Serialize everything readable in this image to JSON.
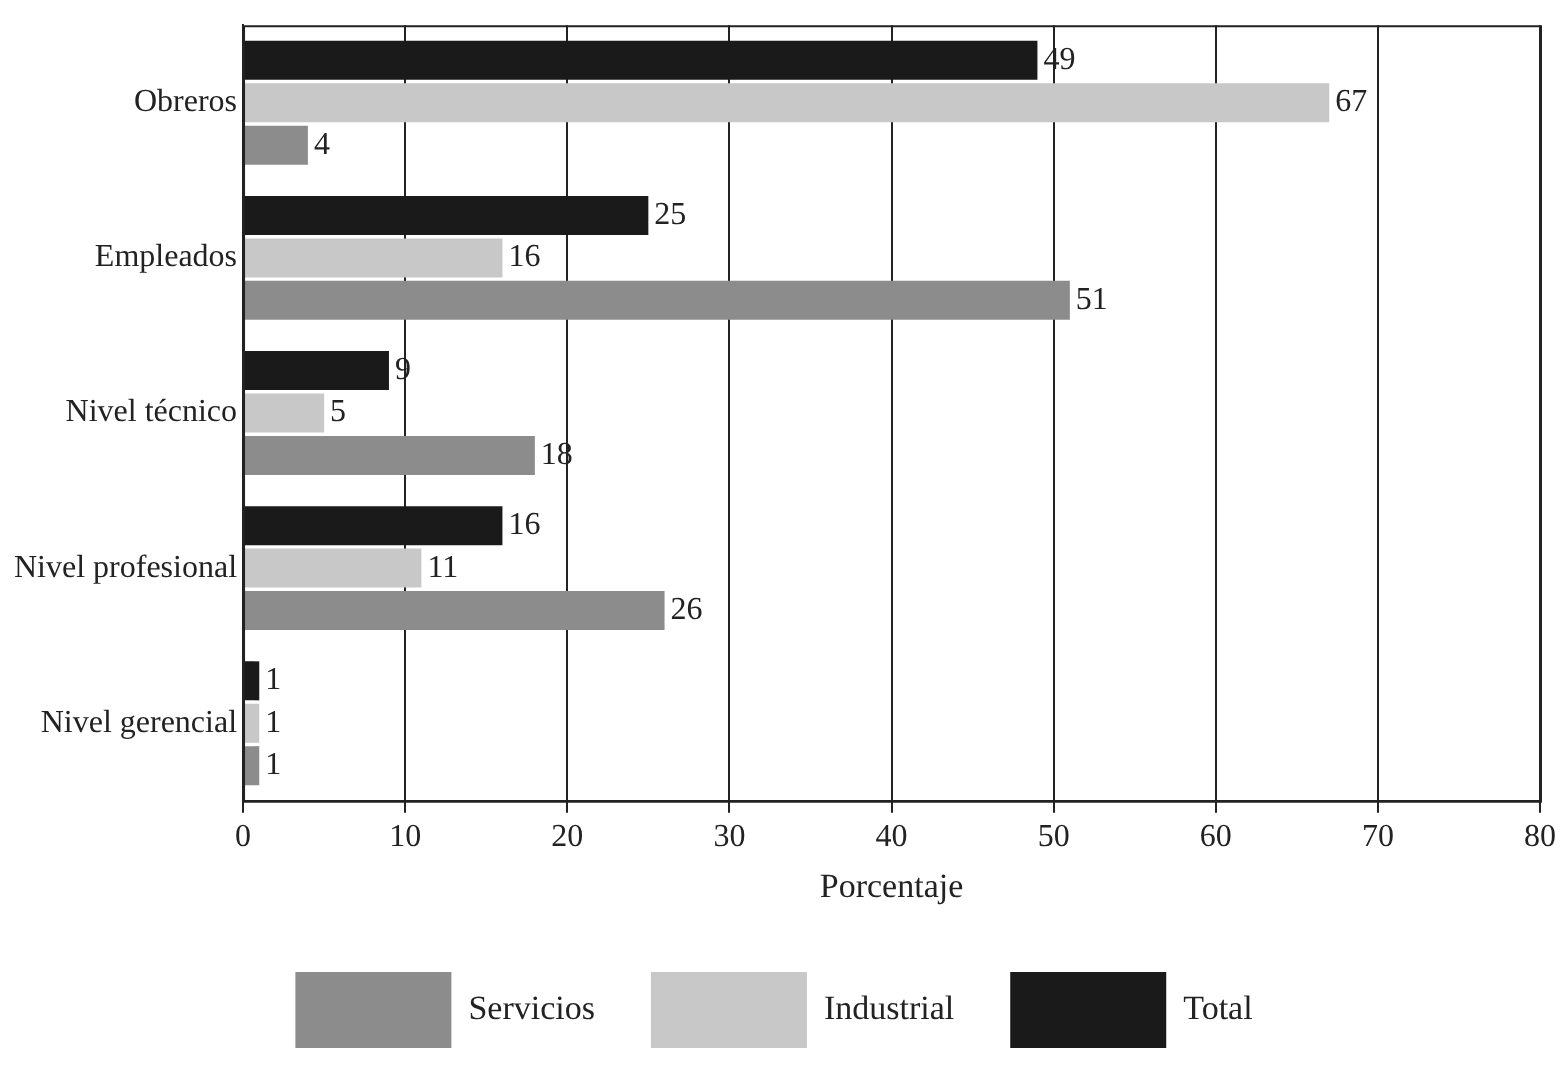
{
  "chart_data": {
    "type": "bar",
    "orientation": "horizontal",
    "xlabel": "Porcentaje",
    "categories": [
      "Obreros",
      "Empleados",
      "Nivel técnico",
      "Nivel profesional",
      "Nivel gerencial"
    ],
    "series": [
      {
        "name": "Servicios",
        "color": "#8c8c8c",
        "values": [
          4,
          51,
          18,
          26,
          1
        ]
      },
      {
        "name": "Industrial",
        "color": "#c8c8c8",
        "values": [
          67,
          16,
          5,
          11,
          1
        ]
      },
      {
        "name": "Total",
        "color": "#1a1a1a",
        "values": [
          49,
          25,
          9,
          16,
          1
        ]
      }
    ],
    "xlim": [
      0,
      80
    ],
    "xticks": [
      0,
      10,
      20,
      30,
      40,
      50,
      60,
      70,
      80
    ],
    "grid": "x",
    "legend": "bottom",
    "data_labels": true
  }
}
